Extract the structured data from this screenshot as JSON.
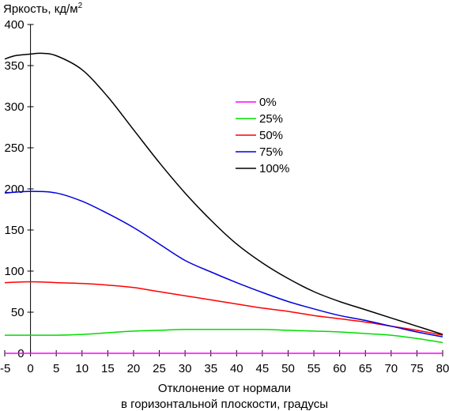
{
  "chart_data": {
    "type": "line",
    "ylabel": "Яркость, кд/м",
    "ylabel_sup": "2",
    "xlabel_line1": "Отклонение от нормали",
    "xlabel_line2": "в горизонтальной плоскости, градусы",
    "xlim": [
      -5,
      80
    ],
    "ylim": [
      0,
      400
    ],
    "xticks": [
      -5,
      0,
      5,
      10,
      15,
      20,
      25,
      30,
      35,
      40,
      45,
      50,
      55,
      60,
      65,
      70,
      75,
      80
    ],
    "yticks": [
      0,
      50,
      100,
      150,
      200,
      250,
      300,
      350,
      400
    ],
    "grid": false,
    "legend_position": "center-right",
    "series": [
      {
        "name": "0%",
        "color": "#ff00ff",
        "x": [
          -5,
          0,
          10,
          20,
          30,
          40,
          50,
          60,
          70,
          80
        ],
        "y": [
          0,
          0,
          0,
          0,
          0,
          0,
          0,
          0,
          0,
          0
        ]
      },
      {
        "name": "25%",
        "color": "#00dd00",
        "x": [
          -5,
          0,
          5,
          10,
          15,
          20,
          25,
          30,
          35,
          40,
          45,
          50,
          55,
          60,
          65,
          70,
          75,
          80
        ],
        "y": [
          22,
          22,
          22,
          23,
          25,
          27,
          28,
          29,
          29,
          29,
          29,
          28,
          27,
          26,
          24,
          22,
          18,
          13
        ]
      },
      {
        "name": "50%",
        "color": "#ff0000",
        "x": [
          -5,
          0,
          5,
          10,
          15,
          20,
          25,
          30,
          35,
          40,
          45,
          50,
          55,
          60,
          65,
          70,
          75,
          80
        ],
        "y": [
          86,
          87,
          86,
          85,
          83,
          80,
          75,
          70,
          65,
          60,
          55,
          51,
          46,
          42,
          38,
          33,
          28,
          22
        ]
      },
      {
        "name": "75%",
        "color": "#0000dd",
        "x": [
          -5,
          0,
          5,
          10,
          15,
          20,
          25,
          30,
          35,
          40,
          45,
          50,
          55,
          60,
          65,
          70,
          75,
          80
        ],
        "y": [
          195,
          197,
          195,
          185,
          170,
          153,
          133,
          113,
          99,
          86,
          74,
          63,
          54,
          46,
          40,
          33,
          26,
          20
        ]
      },
      {
        "name": "100%",
        "color": "#000000",
        "x": [
          -5,
          -3,
          0,
          2,
          5,
          10,
          15,
          20,
          25,
          30,
          35,
          40,
          45,
          50,
          55,
          60,
          65,
          70,
          75,
          80
        ],
        "y": [
          358,
          362,
          364,
          365,
          362,
          345,
          312,
          272,
          232,
          195,
          162,
          133,
          110,
          91,
          75,
          63,
          53,
          43,
          33,
          23
        ]
      }
    ]
  }
}
